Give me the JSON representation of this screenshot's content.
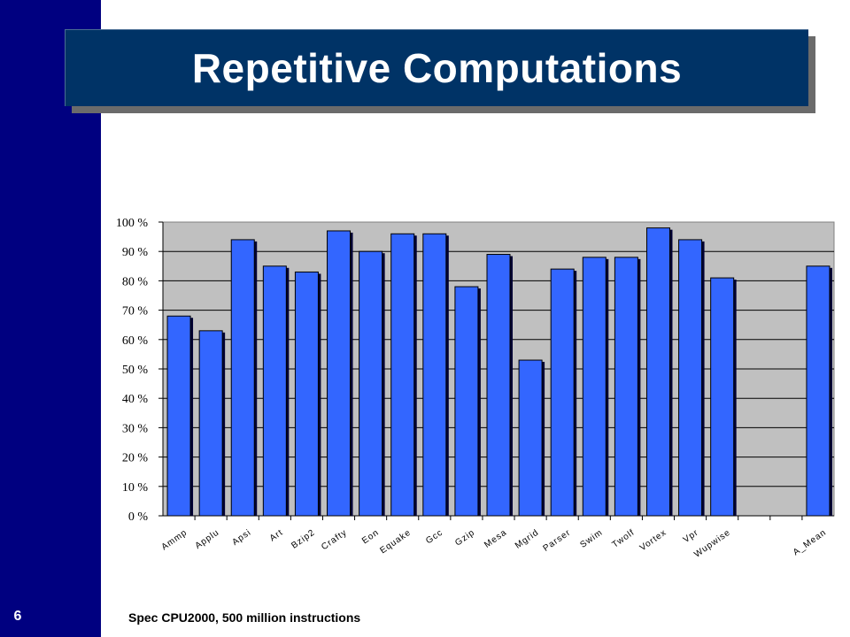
{
  "slide": {
    "number": "6",
    "title": "Repetitive Computations",
    "footnote": "Spec CPU2000, 500 million instructions"
  },
  "colors": {
    "sidebar": "#000080",
    "title_bar": "#003366",
    "plot_area": "#c0c0c0",
    "bar_fill": "#3366ff",
    "bar_shadow": "#000033"
  },
  "chart_data": {
    "type": "bar",
    "categories": [
      "Ammp",
      "Applu",
      "Apsi",
      "Art",
      "Bzip2",
      "Crafty",
      "Eon",
      "Equake",
      "Gcc",
      "Gzip",
      "Mesa",
      "Mgrid",
      "Parser",
      "Swim",
      "Twolf",
      "Vortex",
      "Vpr",
      "Wupwise",
      "",
      "A_Mean"
    ],
    "values": [
      68,
      63,
      94,
      85,
      83,
      97,
      90,
      96,
      96,
      78,
      89,
      53,
      84,
      88,
      88,
      98,
      94,
      81,
      null,
      85
    ],
    "title": "",
    "xlabel": "",
    "ylabel": "",
    "ylim": [
      0,
      100
    ],
    "yticks": [
      0,
      10,
      20,
      30,
      40,
      50,
      60,
      70,
      80,
      90,
      100
    ],
    "ytick_labels": [
      "0 %",
      "10 %",
      "20 %",
      "30 %",
      "40 %",
      "50 %",
      "60 %",
      "70 %",
      "80 %",
      "90 %",
      "100 %"
    ],
    "grid": true,
    "legend": "none"
  }
}
